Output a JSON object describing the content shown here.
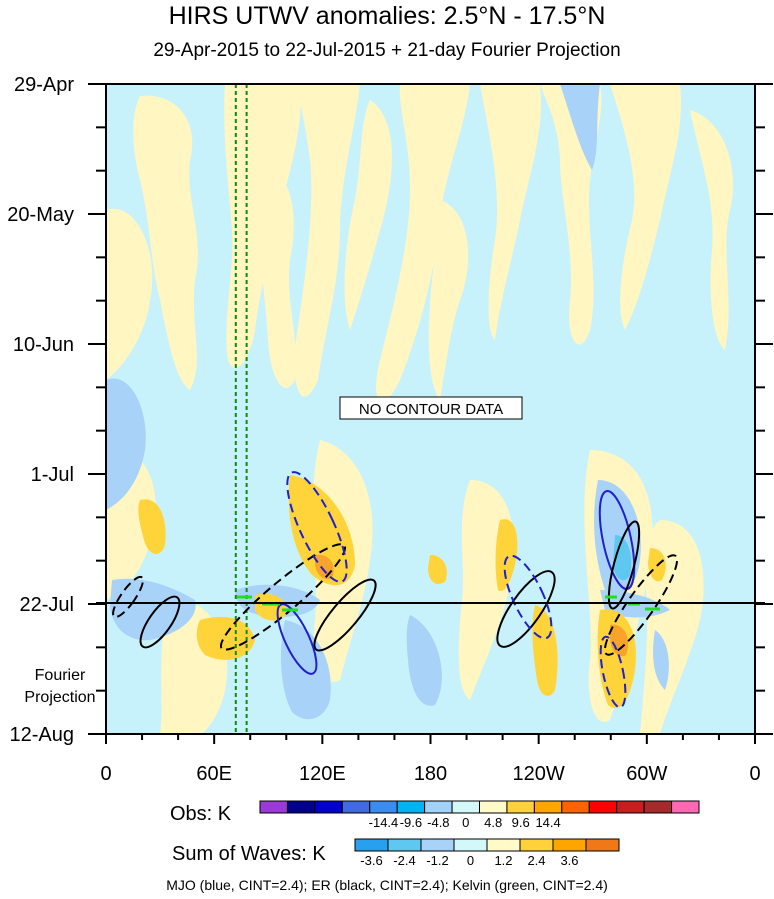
{
  "title": "HIRS UTWV anomalies: 2.5°N - 17.5°N",
  "subtitle": "29-Apr-2015 to 22-Jul-2015 + 21-day Fourier Projection",
  "projection_label_line1": "Fourier",
  "projection_label_line2": "Projection",
  "no_data_label": "NO CONTOUR DATA",
  "footer": "MJO (blue, CINT=2.4); ER (black, CINT=2.4); Kelvin (green, CINT=2.4)",
  "colors": {
    "background_field": "#c8f2fb",
    "positive_light": "#fff6c2",
    "positive_mid": "#ffd43a",
    "positive_strong": "#f8a32a",
    "negative_light": "#a8d2f8",
    "negative_mid": "#5ec8f0",
    "mjo": "#2020cc",
    "er": "#000000",
    "kelvin": "#22dd22",
    "reference_lines": "#118811"
  },
  "chart_data": {
    "type": "heatmap",
    "title": "HIRS UTWV anomalies: 2.5°N - 17.5°N",
    "subtitle": "29-Apr-2015 to 22-Jul-2015 + 21-day Fourier Projection",
    "x_ticks": [
      "0",
      "60E",
      "120E",
      "180",
      "120W",
      "60W",
      "0"
    ],
    "x_tick_values": [
      0,
      60,
      120,
      180,
      240,
      300,
      360
    ],
    "y_ticks": [
      "29-Apr",
      "20-May",
      "10-Jun",
      "1-Jul",
      "22-Jul",
      "12-Aug"
    ],
    "y_tick_days": [
      0,
      21,
      42,
      63,
      84,
      105
    ],
    "xlim": [
      0,
      360
    ],
    "ylim_days": [
      0,
      105
    ],
    "observation_end": "22-Jul",
    "reference_lines_longitude": [
      72,
      78
    ],
    "obs_legend": {
      "title": "Obs: K",
      "labels": [
        "-14.4",
        "-9.6",
        "-4.8",
        "0",
        "4.8",
        "9.6",
        "14.4"
      ],
      "colors": [
        "#9c3ad8",
        "#00008b",
        "#0000cd",
        "#4169e1",
        "#3c8cf0",
        "#00b4f0",
        "#a0d2fa",
        "#d2f8fa",
        "#fffac8",
        "#ffd23c",
        "#ffa500",
        "#ff6400",
        "#ff0000",
        "#c81e1e",
        "#a52a2a",
        "#ff69b4"
      ]
    },
    "waves_legend": {
      "title": "Sum of Waves: K",
      "labels": [
        "-3.6",
        "-2.4",
        "-1.2",
        "0",
        "1.2",
        "2.4",
        "3.6"
      ],
      "colors": [
        "#28a0f0",
        "#5ec8f0",
        "#a8d2f8",
        "#d2f8fa",
        "#fffac8",
        "#ffd23c",
        "#ffa500",
        "#f07818"
      ]
    }
  }
}
